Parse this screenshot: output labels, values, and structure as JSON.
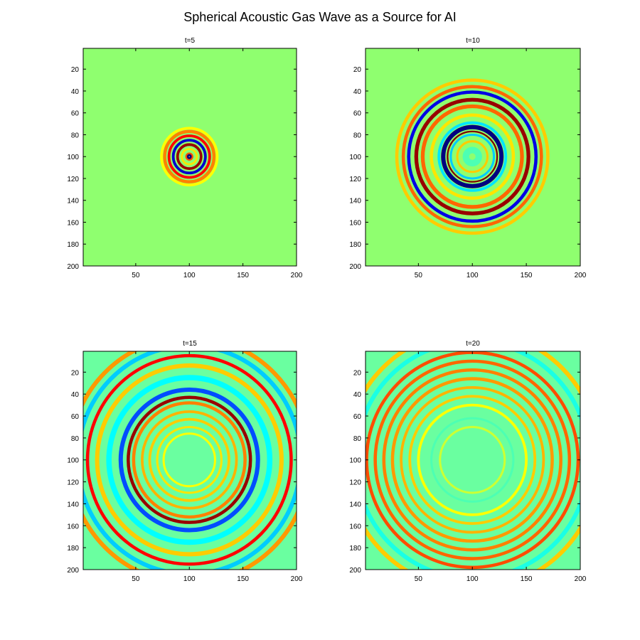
{
  "figure": {
    "title": "Spherical Acoustic Gas Wave as a Source for AI"
  },
  "chart_data": [
    {
      "type": "heatmap",
      "title": "t=5",
      "xlim": [
        1,
        200
      ],
      "ylim": [
        1,
        200
      ],
      "y_reversed": true,
      "xticks": [
        50,
        100,
        150,
        200
      ],
      "yticks": [
        20,
        40,
        60,
        80,
        100,
        120,
        140,
        160,
        180,
        200
      ],
      "colormap": "jet",
      "background_color": "#8fff6f",
      "center": [
        100,
        100
      ],
      "rings": [
        {
          "radius": 1,
          "width": 3,
          "value": -1.0
        },
        {
          "radius": 3,
          "width": 1.5,
          "value": 0.6
        },
        {
          "radius": 7,
          "width": 1.8,
          "value": 0.3
        },
        {
          "radius": 11,
          "width": 2.5,
          "value": 0.95
        },
        {
          "radius": 15,
          "width": 2.5,
          "value": -0.85
        },
        {
          "radius": 19,
          "width": 2.5,
          "value": 0.75
        },
        {
          "radius": 23,
          "width": 3,
          "value": 0.5
        },
        {
          "radius": 26,
          "width": 2.5,
          "value": 0.25
        }
      ]
    },
    {
      "type": "heatmap",
      "title": "t=10",
      "xlim": [
        1,
        200
      ],
      "ylim": [
        1,
        200
      ],
      "y_reversed": true,
      "xticks": [
        50,
        100,
        150,
        200
      ],
      "yticks": [
        20,
        40,
        60,
        80,
        100,
        120,
        140,
        160,
        180,
        200
      ],
      "colormap": "jet",
      "background_color": "#8fff6f",
      "center": [
        100,
        100
      ],
      "rings": [
        {
          "radius": 6,
          "width": 6,
          "value": -0.1
        },
        {
          "radius": 14,
          "width": 2,
          "value": 0.35
        },
        {
          "radius": 20,
          "width": 2,
          "value": -0.35
        },
        {
          "radius": 23,
          "width": 1.5,
          "value": 1.0
        },
        {
          "radius": 27,
          "width": 4,
          "value": -1.0
        },
        {
          "radius": 31,
          "width": 2.5,
          "value": -0.3
        },
        {
          "radius": 38,
          "width": 3,
          "value": 0.3
        },
        {
          "radius": 46,
          "width": 3.5,
          "value": 0.55
        },
        {
          "radius": 52,
          "width": 3.5,
          "value": 0.95
        },
        {
          "radius": 59,
          "width": 3,
          "value": -0.8
        },
        {
          "radius": 64,
          "width": 3,
          "value": 0.55
        },
        {
          "radius": 70,
          "width": 3,
          "value": 0.35
        }
      ]
    },
    {
      "type": "heatmap",
      "title": "t=15",
      "xlim": [
        1,
        200
      ],
      "ylim": [
        1,
        200
      ],
      "y_reversed": true,
      "xticks": [
        50,
        100,
        150,
        200
      ],
      "yticks": [
        20,
        40,
        60,
        80,
        100,
        120,
        140,
        160,
        180,
        200
      ],
      "colormap": "jet",
      "background_color": "#6affa0",
      "center": [
        100,
        100
      ],
      "rings": [
        {
          "radius": 24,
          "width": 2,
          "value": 0.25
        },
        {
          "radius": 30,
          "width": 2,
          "value": 0.3
        },
        {
          "radius": 37,
          "width": 2.5,
          "value": 0.35
        },
        {
          "radius": 44,
          "width": 2.5,
          "value": 0.4
        },
        {
          "radius": 52,
          "width": 3,
          "value": 0.5
        },
        {
          "radius": 57,
          "width": 3,
          "value": 0.95
        },
        {
          "radius": 64,
          "width": 4,
          "value": -0.6
        },
        {
          "radius": 75,
          "width": 5,
          "value": -0.25
        },
        {
          "radius": 86,
          "width": 4,
          "value": 0.35
        },
        {
          "radius": 95,
          "width": 3,
          "value": 0.75
        },
        {
          "radius": 104,
          "width": 4,
          "value": -0.35
        },
        {
          "radius": 112,
          "width": 4,
          "value": 0.45
        }
      ]
    },
    {
      "type": "heatmap",
      "title": "t=20",
      "xlim": [
        1,
        200
      ],
      "ylim": [
        1,
        200
      ],
      "y_reversed": true,
      "xticks": [
        50,
        100,
        150,
        200
      ],
      "yticks": [
        20,
        40,
        60,
        80,
        100,
        120,
        140,
        160,
        180,
        200
      ],
      "colormap": "jet",
      "background_color": "#6affa0",
      "center": [
        100,
        100
      ],
      "rings": [
        {
          "radius": 30,
          "width": 2,
          "value": 0.15
        },
        {
          "radius": 38,
          "width": 2,
          "value": -0.1
        },
        {
          "radius": 50,
          "width": 2.5,
          "value": 0.25
        },
        {
          "radius": 58,
          "width": 2.5,
          "value": 0.35
        },
        {
          "radius": 66,
          "width": 2.5,
          "value": 0.4
        },
        {
          "radius": 74,
          "width": 3,
          "value": 0.45
        },
        {
          "radius": 82,
          "width": 3,
          "value": 0.5
        },
        {
          "radius": 90,
          "width": 3,
          "value": 0.55
        },
        {
          "radius": 98,
          "width": 3,
          "value": 0.6
        },
        {
          "radius": 108,
          "width": 4,
          "value": -0.2
        },
        {
          "radius": 118,
          "width": 4,
          "value": 0.35
        }
      ]
    }
  ]
}
